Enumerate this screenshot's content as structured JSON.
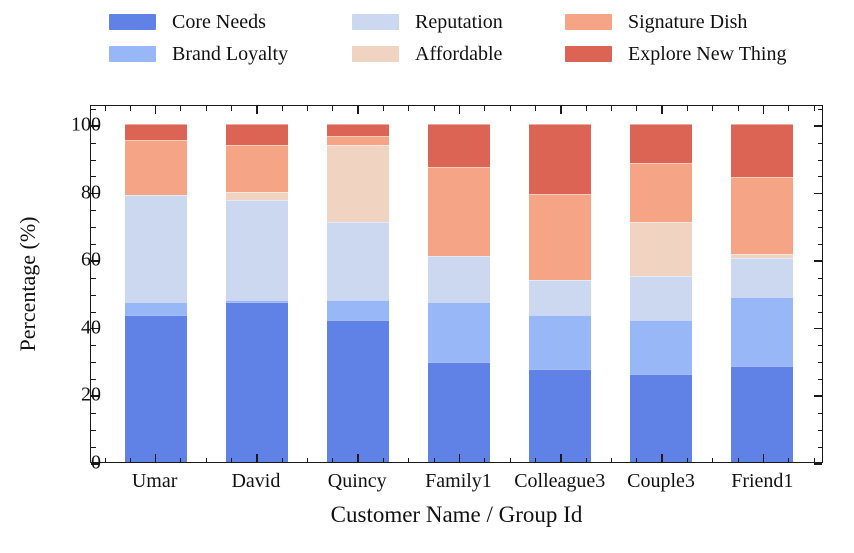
{
  "chart_data": {
    "type": "bar",
    "subtype": "stacked_percentage",
    "title": "",
    "xlabel": "Customer Name / Group Id",
    "ylabel": "Percentage (%)",
    "categories": [
      "Umar",
      "David",
      "Quincy",
      "Family1",
      "Colleague3",
      "Couple3",
      "Friend1"
    ],
    "series": [
      {
        "name": "Core Needs",
        "color": "#6081E5",
        "values": [
          43.5,
          47.5,
          42.0,
          29.5,
          27.5,
          26.0,
          28.5
        ]
      },
      {
        "name": "Brand Loyalty",
        "color": "#98B7F7",
        "values": [
          4.0,
          0.5,
          6.0,
          18.0,
          16.0,
          16.0,
          20.5
        ]
      },
      {
        "name": "Reputation",
        "color": "#CBD8F0",
        "values": [
          31.5,
          29.5,
          23.0,
          13.5,
          10.5,
          13.0,
          11.5
        ]
      },
      {
        "name": "Affordable",
        "color": "#F0D3C0",
        "values": [
          0.0,
          2.5,
          23.0,
          0.0,
          0.0,
          16.0,
          1.0
        ]
      },
      {
        "name": "Signature Dish",
        "color": "#F5A486",
        "values": [
          16.5,
          14.0,
          2.5,
          26.5,
          25.5,
          17.5,
          23.0
        ]
      },
      {
        "name": "Explore New Thing",
        "color": "#DC6454",
        "values": [
          4.5,
          6.0,
          3.5,
          12.5,
          20.5,
          11.5,
          15.5
        ]
      }
    ],
    "y_ticks": [
      0,
      20,
      40,
      60,
      80,
      100
    ],
    "y_minor_step": 5,
    "ylim": [
      0,
      106
    ],
    "grid": false,
    "legend_position": "top",
    "legend_rows": [
      [
        "Core Needs",
        "Reputation",
        "Signature Dish"
      ],
      [
        "Brand Loyalty",
        "Affordable",
        "Explore New Thing"
      ]
    ],
    "axis_color": "#1a1a1a"
  }
}
